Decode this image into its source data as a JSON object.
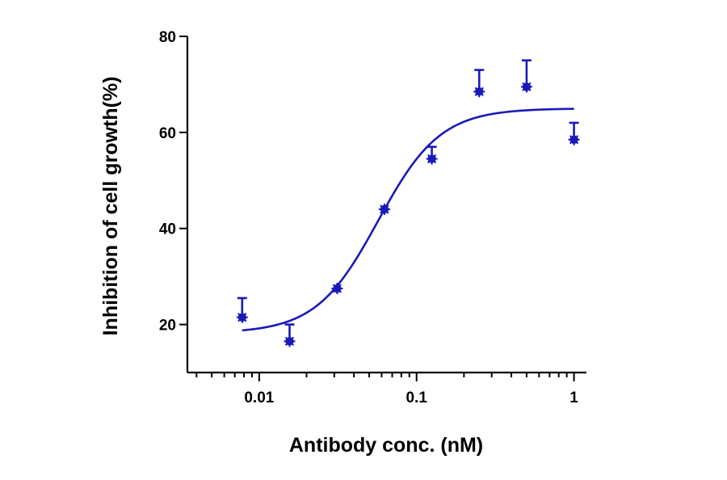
{
  "chart_data": {
    "type": "scatter",
    "title": "",
    "xlabel": "Antibody conc. (nM)",
    "ylabel": "Inhibition of cell growth(%)",
    "x_scale": "log",
    "xlim": [
      0.0035,
      1.2
    ],
    "ylim": [
      10,
      80
    ],
    "x_ticks": [
      {
        "value": 0.01,
        "label": "0.01"
      },
      {
        "value": 0.1,
        "label": "0.1"
      },
      {
        "value": 1,
        "label": "1"
      }
    ],
    "y_ticks": [
      {
        "value": 20,
        "label": "20"
      },
      {
        "value": 40,
        "label": "40"
      },
      {
        "value": 60,
        "label": "60"
      },
      {
        "value": 80,
        "label": "80"
      }
    ],
    "grid": false,
    "color": "#1a1ab8",
    "series": [
      {
        "x": [
          0.0078,
          0.0156,
          0.0313,
          0.0625,
          0.125,
          0.25,
          0.5,
          1.0
        ],
        "y": [
          21.5,
          16.5,
          27.5,
          44.0,
          54.5,
          68.5,
          69.5,
          58.5
        ],
        "error_upper": [
          25.5,
          20.0,
          27.5,
          44.0,
          57.0,
          73.0,
          75.0,
          62.0
        ]
      }
    ],
    "fit": {
      "model": "four-parameter logistic",
      "bottom": 18.2,
      "top": 65.0,
      "ec50": 0.057,
      "hill": 2.2,
      "x_range": [
        0.0078,
        1.0
      ]
    }
  }
}
